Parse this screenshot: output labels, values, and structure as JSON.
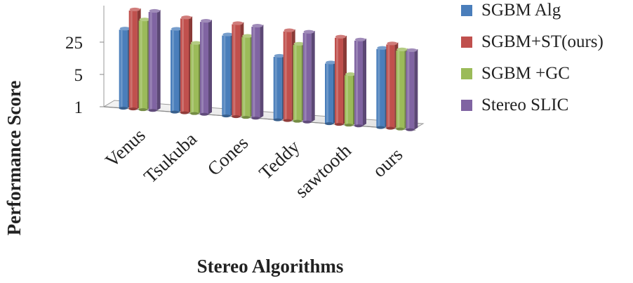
{
  "chart_data": {
    "type": "bar",
    "style": "3d-clustered-column",
    "yscale": "log",
    "title": "",
    "xlabel": "Stereo Algorithms",
    "ylabel": "Performance Score",
    "yticks": [
      1,
      5,
      25
    ],
    "ytick_labels": [
      "1",
      "5",
      "25"
    ],
    "ylim": [
      1,
      150
    ],
    "categories": [
      "Venus",
      "Tsukuba",
      "Cones",
      "Teddy",
      "sawtooth",
      "ours"
    ],
    "series": [
      {
        "name": "SGBM Alg",
        "color": "#4a7ebb",
        "values": [
          50,
          60,
          55,
          23,
          20,
          50
        ]
      },
      {
        "name": "SGBM+ST(ours)",
        "color": "#c0504d",
        "values": [
          135,
          110,
          100,
          85,
          75,
          65
        ]
      },
      {
        "name": "SGBM +GC",
        "color": "#9bbb59",
        "values": [
          85,
          32,
          55,
          45,
          12,
          50
        ]
      },
      {
        "name": "Stereo SLIC",
        "color": "#8064a2",
        "values": [
          135,
          100,
          95,
          85,
          70,
          50
        ]
      }
    ],
    "legend": {
      "position": "right"
    }
  }
}
